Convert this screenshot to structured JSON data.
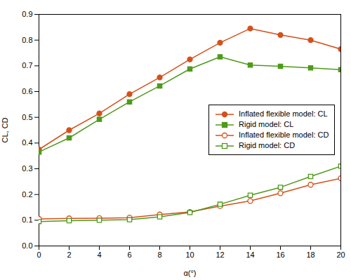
{
  "chart_data": {
    "type": "line",
    "xlabel": "α(°)",
    "ylabel": "CL, CD",
    "x": [
      0,
      2,
      4,
      6,
      8,
      10,
      12,
      14,
      16,
      18,
      20
    ],
    "series": [
      {
        "name": "Inflated flexible model: CL",
        "color": "#d4501a",
        "marker": "circle",
        "values": [
          0.375,
          0.45,
          0.515,
          0.59,
          0.655,
          0.725,
          0.79,
          0.845,
          0.82,
          0.8,
          0.765
        ]
      },
      {
        "name": "Rigid model: CL",
        "color": "#4e9a1a",
        "marker": "square",
        "values": [
          0.365,
          0.42,
          0.492,
          0.56,
          0.622,
          0.688,
          0.735,
          0.703,
          0.698,
          0.692,
          0.685
        ]
      },
      {
        "name": "Inflated flexible model: CD",
        "color": "#d4501a",
        "marker": "circle-open",
        "values": [
          0.105,
          0.107,
          0.108,
          0.11,
          0.122,
          0.132,
          0.155,
          0.175,
          0.205,
          0.238,
          0.263
        ]
      },
      {
        "name": "Rigid model: CD",
        "color": "#4e9a1a",
        "marker": "square-open",
        "values": [
          0.095,
          0.098,
          0.1,
          0.102,
          0.113,
          0.13,
          0.162,
          0.197,
          0.228,
          0.27,
          0.31
        ]
      }
    ],
    "xlim": [
      0,
      20
    ],
    "ylim": [
      0,
      0.9
    ],
    "xticks": [
      0,
      2,
      4,
      6,
      8,
      10,
      12,
      14,
      16,
      18,
      20
    ],
    "yticks": [
      {
        "value": 0,
        "label": "0.0"
      },
      0.1,
      0.2,
      0.3,
      0.4,
      0.5,
      0.6,
      0.7,
      0.8,
      0.9
    ],
    "grid": false,
    "legend": "center right"
  }
}
